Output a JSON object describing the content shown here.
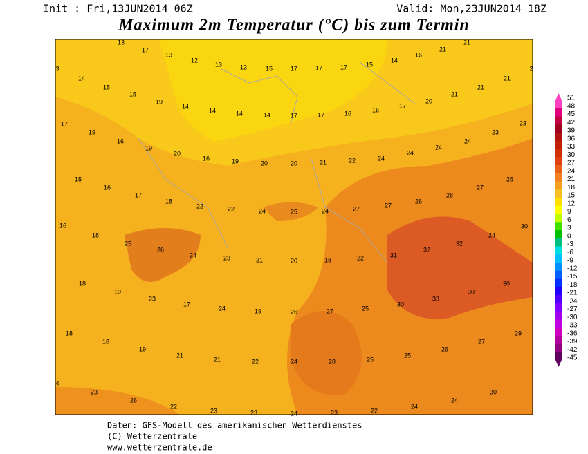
{
  "header": {
    "init": "Init : Fri,13JUN2014 06Z",
    "valid": "Valid: Mon,23JUN2014 18Z",
    "title": "Maximum 2m Temperatur (°C) bis zum Termin"
  },
  "map_labels": [
    13,
    17,
    13,
    12,
    13,
    13,
    15,
    17,
    17,
    17,
    15,
    14,
    16,
    21,
    21,
    3,
    14,
    15,
    15,
    19,
    14,
    14,
    14,
    14,
    17,
    17,
    16,
    16,
    17,
    20,
    21,
    21,
    21,
    2,
    17,
    19,
    16,
    19,
    20,
    16,
    19,
    20,
    20,
    21,
    22,
    24,
    24,
    24,
    24,
    23,
    23,
    15,
    16,
    17,
    18,
    22,
    22,
    24,
    25,
    24,
    27,
    27,
    26,
    28,
    27,
    25,
    16,
    18,
    25,
    26,
    24,
    23,
    21,
    20,
    18,
    22,
    31,
    32,
    32,
    24,
    30,
    18,
    19,
    23,
    17,
    24,
    19,
    26,
    27,
    25,
    30,
    33,
    30,
    30,
    18,
    18,
    19,
    21,
    21,
    22,
    24,
    28,
    25,
    25,
    26,
    27,
    29,
    4,
    23,
    26,
    22,
    23,
    23,
    24,
    23,
    22,
    24,
    24,
    30
  ],
  "colorbar": {
    "labels": [
      51,
      48,
      45,
      42,
      39,
      36,
      33,
      30,
      27,
      24,
      21,
      18,
      15,
      12,
      9,
      6,
      3,
      0,
      -3,
      -6,
      -9,
      -12,
      -15,
      -18,
      -21,
      -24,
      -27,
      -30,
      -33,
      -36,
      -39,
      -42,
      -45
    ],
    "colors": [
      "#ff40c0",
      "#e0007f",
      "#c00040",
      "#a00020",
      "#b01010",
      "#c02000",
      "#d03000",
      "#e04010",
      "#e86018",
      "#f08020",
      "#f5a020",
      "#f8c020",
      "#ffe000",
      "#ffff00",
      "#c0ff00",
      "#40e000",
      "#00c000",
      "#00c080",
      "#00e0e0",
      "#00c0ff",
      "#0090ff",
      "#0060ff",
      "#0030ff",
      "#2000ff",
      "#5000ff",
      "#8000ff",
      "#a000f0",
      "#c000e0",
      "#d000c0",
      "#b000a0",
      "#900080",
      "#600060"
    ]
  },
  "footer": {
    "line1": "Daten: GFS-Modell des amerikanischen Wetterdienstes",
    "line2": "(C) Wetterzentrale",
    "line3": "www.wetterzentrale.de"
  }
}
